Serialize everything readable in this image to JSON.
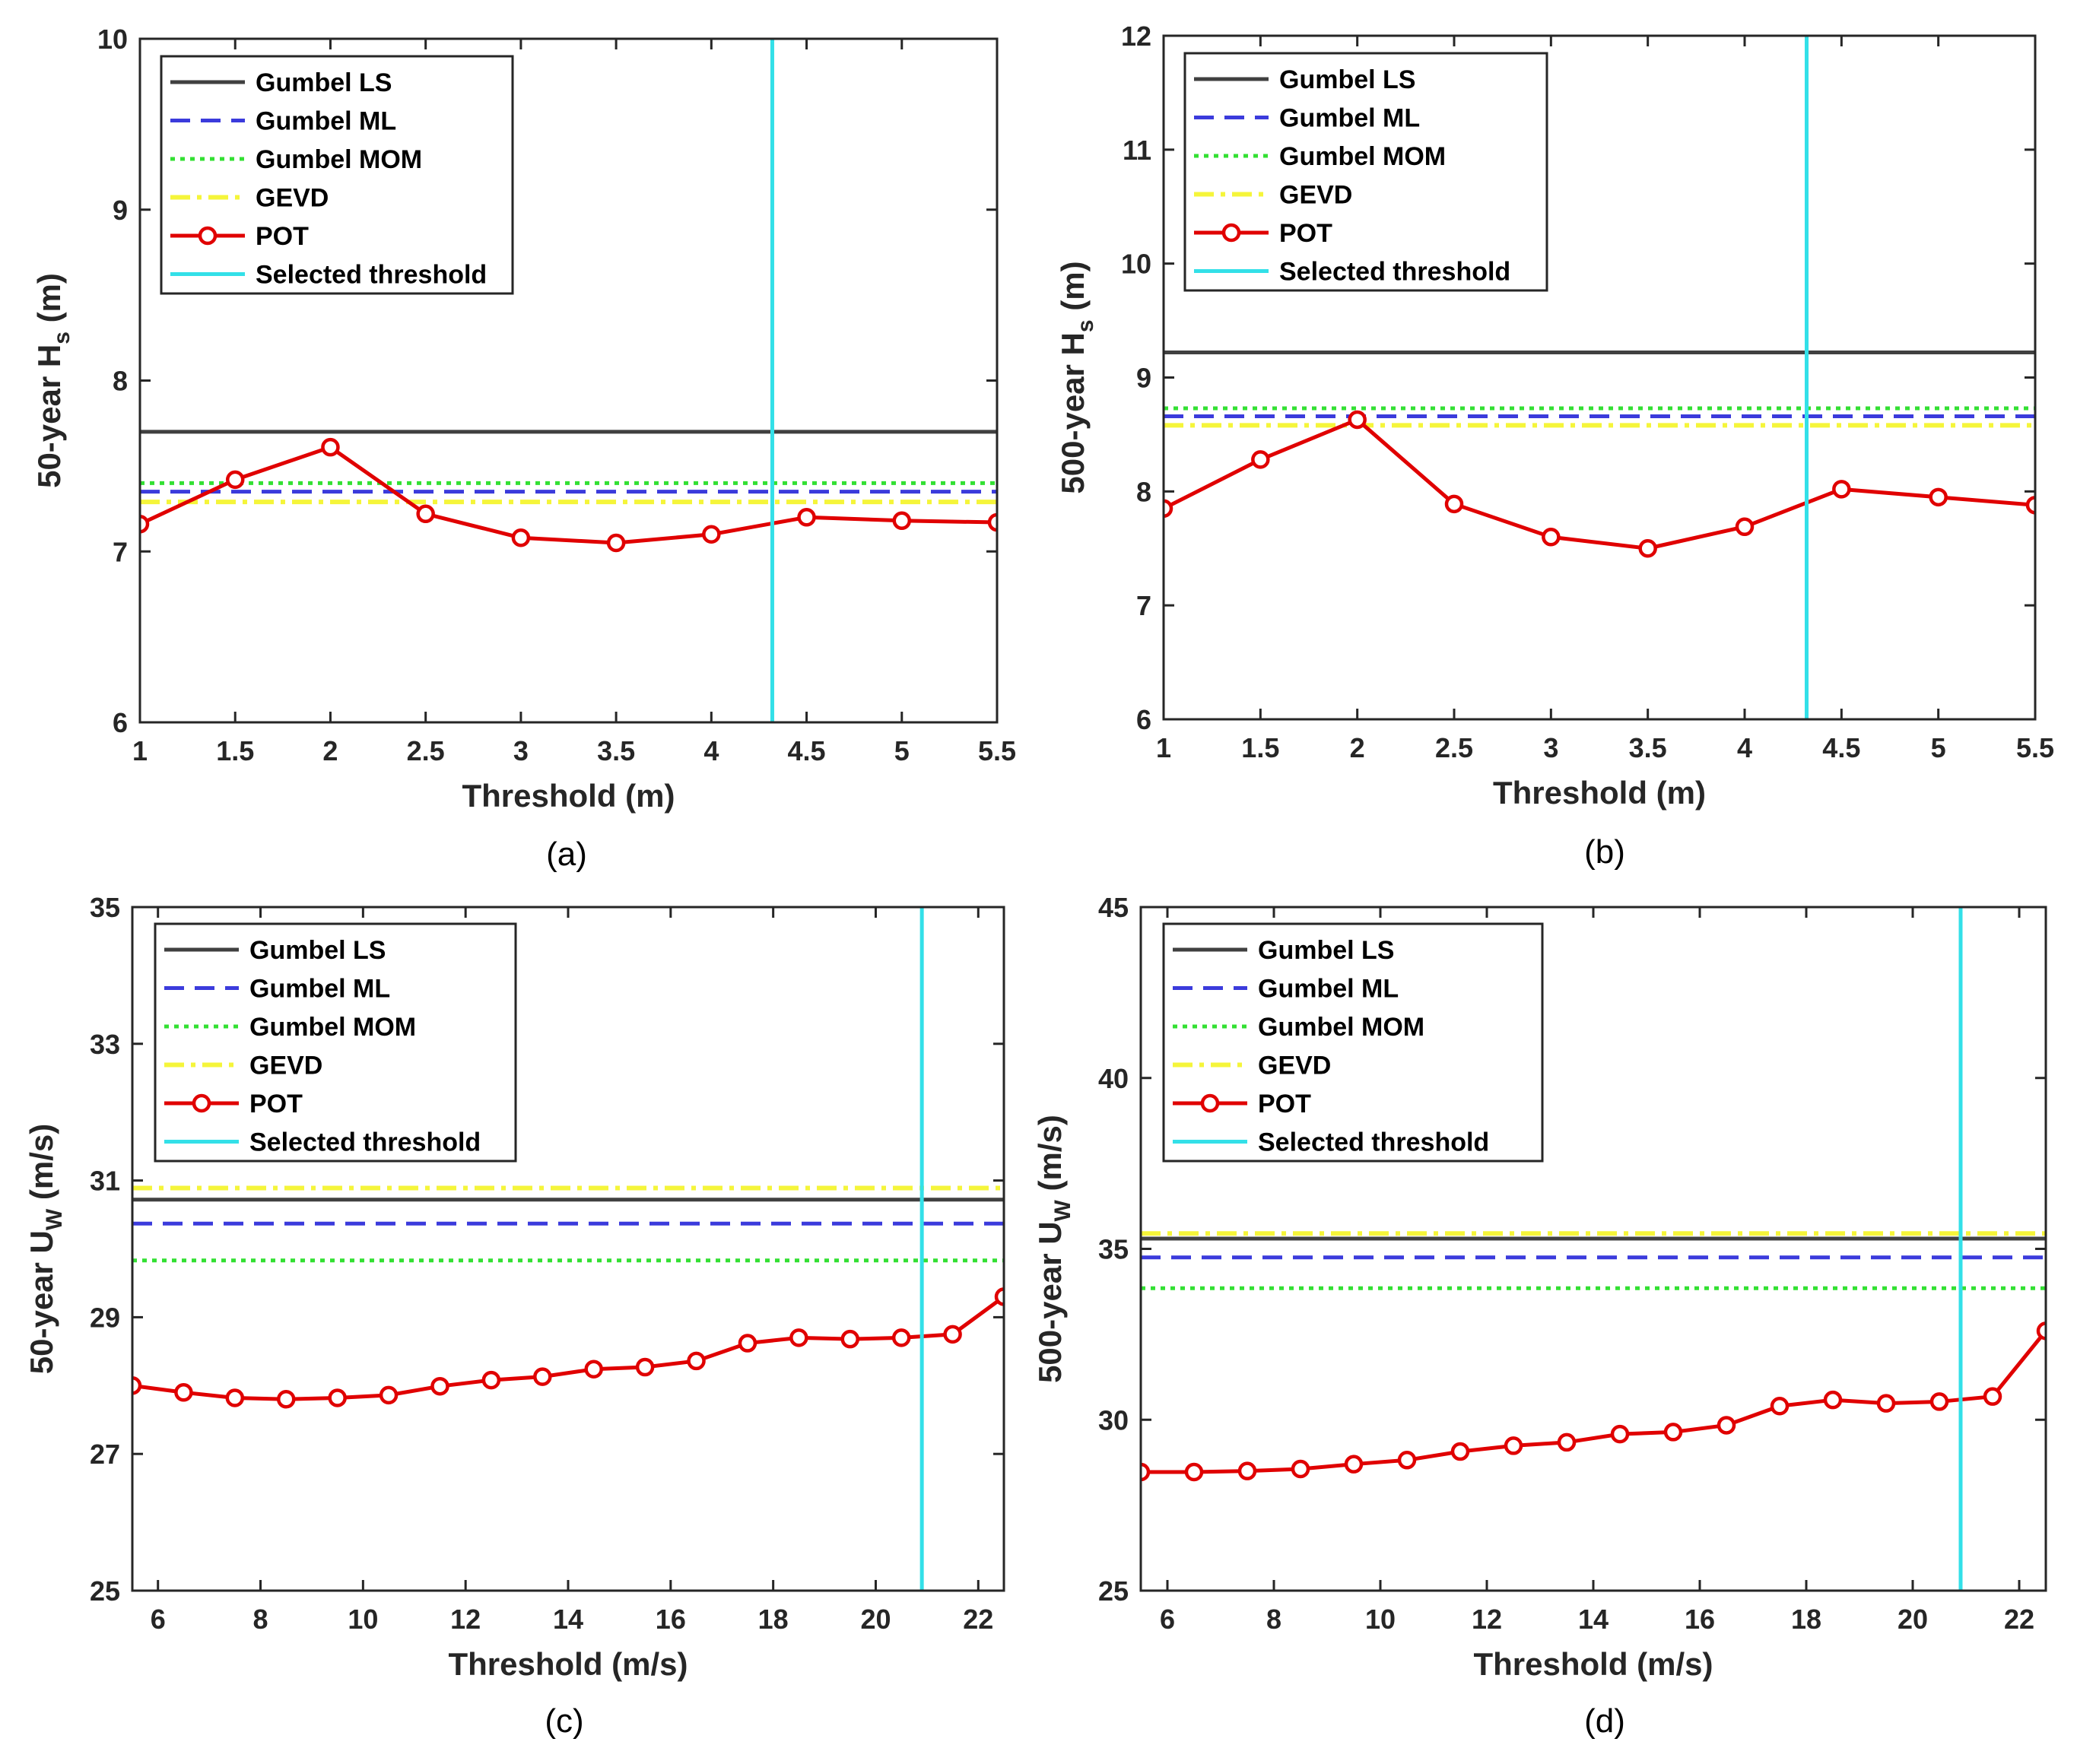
{
  "colors": {
    "gumbel_ls": "#404040",
    "gumbel_ml": "#3b3bdc",
    "gumbel_mom": "#33e033",
    "gevd": "#f5f53a",
    "pot": "#e00000",
    "threshold": "#33e0e8",
    "axis": "#262626"
  },
  "legend": [
    "Gumbel LS",
    "Gumbel ML",
    "Gumbel MOM",
    "GEVD",
    "POT",
    "Selected threshold"
  ],
  "chart_data": [
    {
      "type": "line",
      "caption": "(a)",
      "xlabel": "Threshold (m)",
      "ylabel_main": "50-year H",
      "ylabel_sub": "s",
      "ylabel_tail": " (m)",
      "xlim": [
        1,
        5.5
      ],
      "ylim": [
        6,
        10
      ],
      "xticks": [
        1,
        1.5,
        2,
        2.5,
        3,
        3.5,
        4,
        4.5,
        5,
        5.5
      ],
      "yticks": [
        6,
        7,
        8,
        9,
        10
      ],
      "xtick_labels": [
        "1",
        "1.5",
        "2",
        "2.5",
        "3",
        "3.5",
        "4",
        "4.5",
        "5",
        "5.5"
      ],
      "ytick_labels": [
        "6",
        "7",
        "8",
        "9",
        "10"
      ],
      "legend_loc": "top-left",
      "series": [
        {
          "name": "Gumbel LS",
          "constant": 7.7
        },
        {
          "name": "Gumbel ML",
          "constant": 7.35
        },
        {
          "name": "Gumbel MOM",
          "constant": 7.4
        },
        {
          "name": "GEVD",
          "constant": 7.29
        },
        {
          "name": "POT",
          "x": [
            1,
            1.5,
            2,
            2.5,
            3,
            3.5,
            4,
            4.5,
            5,
            5.5
          ],
          "values": [
            7.16,
            7.42,
            7.61,
            7.22,
            7.08,
            7.05,
            7.1,
            7.2,
            7.18,
            7.17
          ]
        },
        {
          "name": "Selected threshold",
          "vertical": 4.32
        }
      ]
    },
    {
      "type": "line",
      "caption": "(b)",
      "xlabel": "Threshold (m)",
      "ylabel_main": "500-year H",
      "ylabel_sub": "s",
      "ylabel_tail": " (m)",
      "xlim": [
        1,
        5.5
      ],
      "ylim": [
        6,
        12
      ],
      "xticks": [
        1,
        1.5,
        2,
        2.5,
        3,
        3.5,
        4,
        4.5,
        5,
        5.5
      ],
      "yticks": [
        6,
        7,
        8,
        9,
        10,
        11,
        12
      ],
      "xtick_labels": [
        "1",
        "1.5",
        "2",
        "2.5",
        "3",
        "3.5",
        "4",
        "4.5",
        "5",
        "5.5"
      ],
      "ytick_labels": [
        "6",
        "7",
        "8",
        "9",
        "10",
        "11",
        "12"
      ],
      "legend_loc": "top-left",
      "series": [
        {
          "name": "Gumbel LS",
          "constant": 9.22
        },
        {
          "name": "Gumbel ML",
          "constant": 8.66
        },
        {
          "name": "Gumbel MOM",
          "constant": 8.73
        },
        {
          "name": "GEVD",
          "constant": 8.58
        },
        {
          "name": "POT",
          "x": [
            1,
            1.5,
            2,
            2.5,
            3,
            3.5,
            4,
            4.5,
            5,
            5.5
          ],
          "values": [
            7.85,
            8.28,
            8.63,
            7.89,
            7.6,
            7.5,
            7.69,
            8.02,
            7.95,
            7.88
          ]
        },
        {
          "name": "Selected threshold",
          "vertical": 4.32
        }
      ]
    },
    {
      "type": "line",
      "caption": "(c)",
      "xlabel": "Threshold (m/s)",
      "ylabel_main": "50-year U",
      "ylabel_sub": "W",
      "ylabel_tail": " (m/s)",
      "xlim": [
        5.5,
        22.5
      ],
      "ylim": [
        25,
        35
      ],
      "xticks": [
        6,
        8,
        10,
        12,
        14,
        16,
        18,
        20,
        22
      ],
      "yticks": [
        25,
        27,
        29,
        31,
        33,
        35
      ],
      "xtick_labels": [
        "6",
        "8",
        "10",
        "12",
        "14",
        "16",
        "18",
        "20",
        "22"
      ],
      "ytick_labels": [
        "25",
        "27",
        "29",
        "31",
        "33",
        "35"
      ],
      "legend_loc": "top-left",
      "series": [
        {
          "name": "Gumbel LS",
          "constant": 30.72
        },
        {
          "name": "Gumbel ML",
          "constant": 30.37
        },
        {
          "name": "Gumbel MOM",
          "constant": 29.83
        },
        {
          "name": "GEVD",
          "constant": 30.89
        },
        {
          "name": "POT",
          "x": [
            5.5,
            6.5,
            7.5,
            8.5,
            9.5,
            10.5,
            11.5,
            12.5,
            13.5,
            14.5,
            15.5,
            16.5,
            17.5,
            18.5,
            19.5,
            20.5,
            21.5,
            22.5
          ],
          "values": [
            28.0,
            27.9,
            27.82,
            27.8,
            27.82,
            27.86,
            27.99,
            28.08,
            28.13,
            28.24,
            28.27,
            28.36,
            28.62,
            28.7,
            28.68,
            28.7,
            28.75,
            29.3
          ]
        },
        {
          "name": "Selected threshold",
          "vertical": 20.9
        }
      ]
    },
    {
      "type": "line",
      "caption": "(d)",
      "xlabel": "Threshold (m/s)",
      "ylabel_main": "500-year U",
      "ylabel_sub": "W",
      "ylabel_tail": " (m/s)",
      "xlim": [
        5.5,
        22.5
      ],
      "ylim": [
        25,
        45
      ],
      "xticks": [
        6,
        8,
        10,
        12,
        14,
        16,
        18,
        20,
        22
      ],
      "yticks": [
        25,
        30,
        35,
        40,
        45
      ],
      "xtick_labels": [
        "6",
        "8",
        "10",
        "12",
        "14",
        "16",
        "18",
        "20",
        "22"
      ],
      "ytick_labels": [
        "25",
        "30",
        "35",
        "40",
        "45"
      ],
      "legend_loc": "top-left",
      "series": [
        {
          "name": "Gumbel LS",
          "constant": 35.3
        },
        {
          "name": "Gumbel ML",
          "constant": 34.75
        },
        {
          "name": "Gumbel MOM",
          "constant": 33.85
        },
        {
          "name": "GEVD",
          "constant": 35.45
        },
        {
          "name": "POT",
          "x": [
            5.5,
            6.5,
            7.5,
            8.5,
            9.5,
            10.5,
            11.5,
            12.5,
            13.5,
            14.5,
            15.5,
            16.5,
            17.5,
            18.5,
            19.5,
            20.5,
            21.5,
            22.5
          ],
          "values": [
            28.47,
            28.47,
            28.5,
            28.56,
            28.7,
            28.82,
            29.07,
            29.24,
            29.34,
            29.58,
            29.64,
            29.84,
            30.4,
            30.58,
            30.48,
            30.53,
            30.68,
            32.6
          ]
        },
        {
          "name": "Selected threshold",
          "vertical": 20.9
        }
      ]
    }
  ]
}
